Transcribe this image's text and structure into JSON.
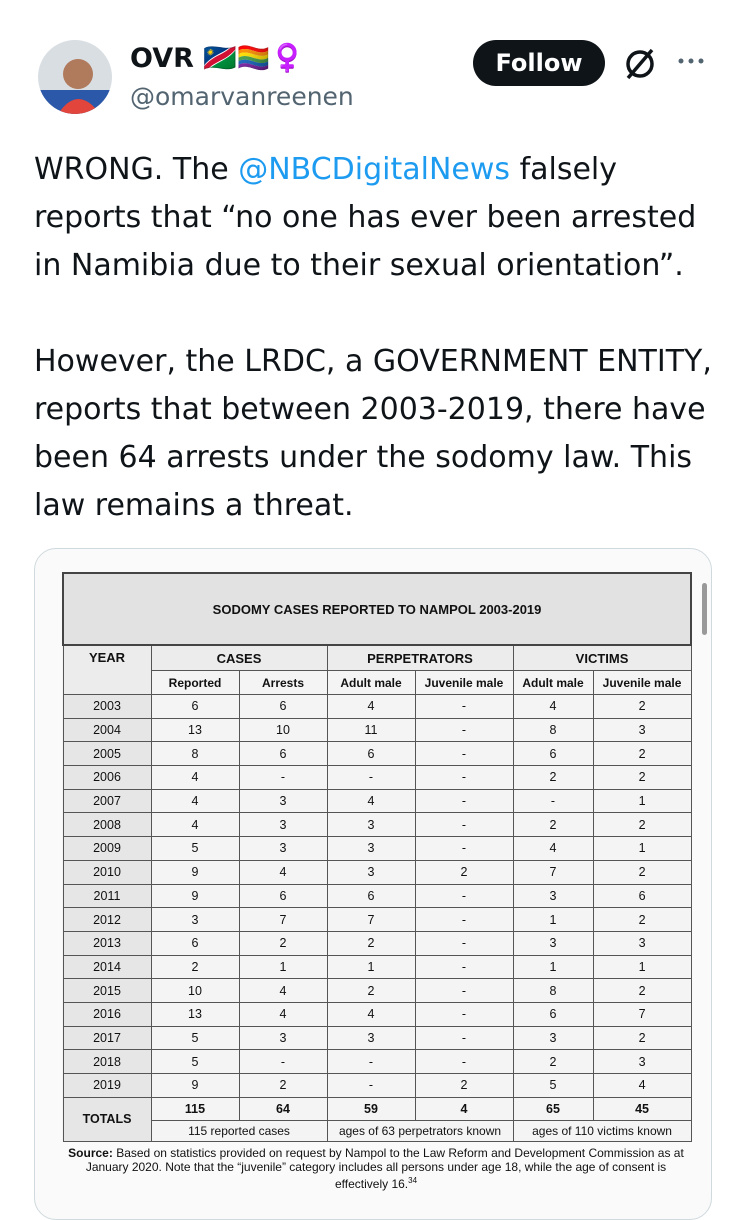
{
  "tweet": {
    "author": {
      "name": "OVR 🇳🇦🏳️‍🌈♀️",
      "handle": "@omarvanreenen"
    },
    "follow_button": "Follow",
    "paragraphs": [
      {
        "before": "WRONG. The ",
        "mention": "@NBCDigitalNews",
        "after": " falsely reports that “no one has ever been arrested in Namibia due to their sexual orientation”."
      },
      {
        "text": "However, the LRDC, a GOVERNMENT ENTITY, reports that between 2003-2019, there have been 64 arrests under the sodomy law. This law remains a threat."
      }
    ]
  },
  "table": {
    "title": "SODOMY CASES REPORTED TO NAMPOL 2003-2019",
    "header": {
      "year": "YEAR",
      "groups": [
        "CASES",
        "PERPETRATORS",
        "VICTIMS"
      ],
      "subcolumns": [
        "Reported",
        "Arrests",
        "Adult male",
        "Juvenile male",
        "Adult male",
        "Juvenile male"
      ]
    },
    "rows": [
      [
        2003,
        6,
        6,
        4,
        "-",
        4,
        2
      ],
      [
        2004,
        13,
        10,
        11,
        "-",
        8,
        3
      ],
      [
        2005,
        8,
        6,
        6,
        "-",
        6,
        2
      ],
      [
        2006,
        4,
        "-",
        "-",
        "-",
        2,
        2
      ],
      [
        2007,
        4,
        3,
        4,
        "-",
        "-",
        1
      ],
      [
        2008,
        4,
        3,
        3,
        "-",
        2,
        2
      ],
      [
        2009,
        5,
        3,
        3,
        "-",
        4,
        1
      ],
      [
        2010,
        9,
        4,
        3,
        2,
        7,
        2
      ],
      [
        2011,
        9,
        6,
        6,
        "-",
        3,
        6
      ],
      [
        2012,
        3,
        7,
        7,
        "-",
        1,
        2
      ],
      [
        2013,
        6,
        2,
        2,
        "-",
        3,
        3
      ],
      [
        2014,
        2,
        1,
        1,
        "-",
        1,
        1
      ],
      [
        2015,
        10,
        4,
        2,
        "-",
        8,
        2
      ],
      [
        2016,
        13,
        4,
        4,
        "-",
        6,
        7
      ],
      [
        2017,
        5,
        3,
        3,
        "-",
        3,
        2
      ],
      [
        2018,
        5,
        "-",
        "-",
        "-",
        2,
        3
      ],
      [
        2019,
        9,
        2,
        "-",
        2,
        5,
        4
      ]
    ],
    "totals": {
      "label": "TOTALS",
      "values": [
        115,
        64,
        59,
        4,
        65,
        45
      ],
      "notes": [
        "115 reported cases",
        "ages of 63 perpetrators known",
        "ages of 110 victims known"
      ]
    },
    "source": {
      "label": "Source:",
      "text": "Based on statistics provided on request by Nampol to the Law Reform and Development Commission as at January 2020. Note that the “juvenile” category includes all persons under age 18, while the age of consent is effectively 16.",
      "footnote": "34"
    }
  }
}
